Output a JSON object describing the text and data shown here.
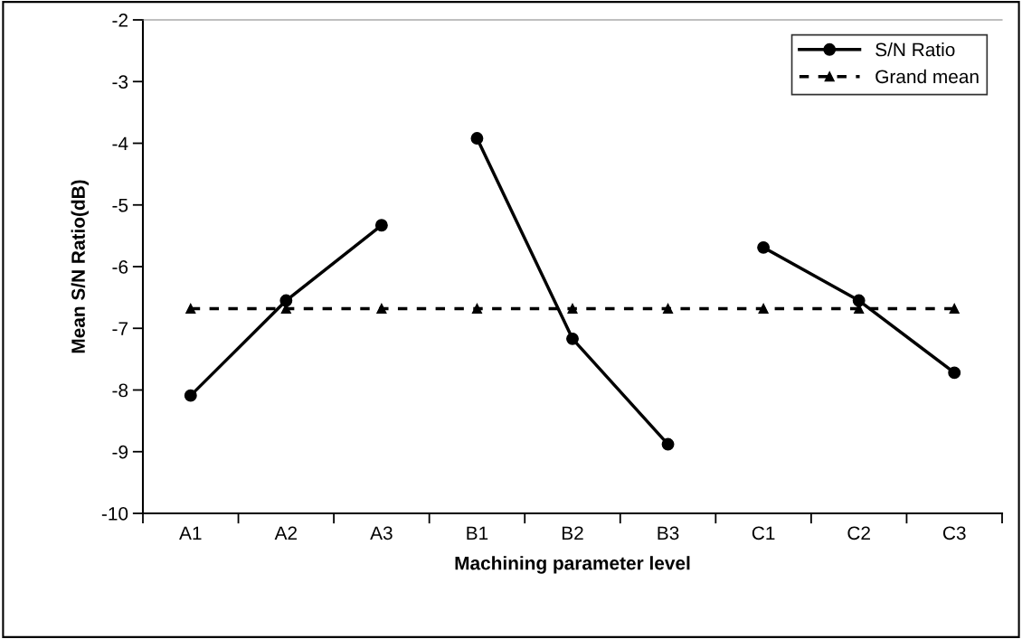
{
  "chart_data": {
    "type": "line",
    "xlabel": "Machining parameter level",
    "ylabel": "Mean S/N Ratio(dB)",
    "categories": [
      "A1",
      "A2",
      "A3",
      "B1",
      "B2",
      "B3",
      "C1",
      "C2",
      "C3"
    ],
    "ylim": [
      -10,
      -2
    ],
    "yticks": [
      -10,
      -9,
      -8,
      -7,
      -6,
      -5,
      -4,
      -3,
      -2
    ],
    "grid": false,
    "legend": "top right",
    "series": [
      {
        "name": "S/N Ratio",
        "color": "#000000",
        "marker": "circle",
        "line_style": "solid",
        "values": [
          -8.09,
          -6.55,
          -5.33,
          null,
          null,
          null,
          null,
          null,
          null
        ]
      },
      {
        "color": "#000000",
        "marker": "circle",
        "line_style": "solid",
        "values": [
          null,
          null,
          null,
          -3.92,
          -7.17,
          -8.88,
          null,
          null,
          null
        ]
      },
      {
        "color": "#000000",
        "marker": "circle",
        "line_style": "solid",
        "values": [
          null,
          null,
          null,
          null,
          null,
          null,
          -5.69,
          -6.55,
          -7.72
        ]
      },
      {
        "name": "Grand mean",
        "color": "#000000",
        "marker": "triangle",
        "line_style": "dashed",
        "values": [
          -6.68,
          -6.68,
          -6.68,
          -6.68,
          -6.68,
          -6.68,
          -6.68,
          -6.68,
          -6.68
        ]
      }
    ]
  }
}
